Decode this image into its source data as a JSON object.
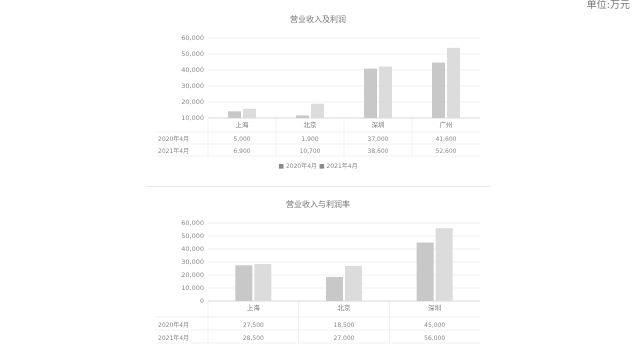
{
  "unit_label": "单位:万元",
  "chart_data": [
    {
      "type": "bar",
      "title": "营业收入及利润",
      "categories": [
        "上海",
        "北京",
        "深圳",
        "广州"
      ],
      "series": [
        {
          "name": "2020年4月",
          "values": [
            5000,
            1900,
            37000,
            41600
          ],
          "color": "#c8c8c8"
        },
        {
          "name": "2021年4月",
          "values": [
            6900,
            10700,
            38600,
            52600
          ],
          "color": "#dcdcdc"
        }
      ],
      "table_rows": [
        {
          "label": "2020年4月",
          "cells": [
            "5,000",
            "1,900",
            "37,000",
            "41,600"
          ]
        },
        {
          "label": "2021年4月",
          "cells": [
            "6,900",
            "10,700",
            "38,600",
            "52,600"
          ]
        }
      ],
      "yticks": [
        "60,000",
        "50,000",
        "40,000",
        "30,000",
        "20,000",
        "10,000"
      ],
      "ylim": [
        0,
        60000
      ],
      "legend_note": "■ 2020年4月   ■ 2021年4月"
    },
    {
      "type": "bar",
      "title": "营业收入与利润率",
      "categories": [
        "上海",
        "北京",
        "深圳"
      ],
      "series": [
        {
          "name": "2020年4月",
          "values": [
            27500,
            18500,
            45000
          ],
          "color": "#c8c8c8"
        },
        {
          "name": "2021年4月",
          "values": [
            28500,
            27000,
            56000
          ],
          "color": "#dcdcdc"
        }
      ],
      "table_rows": [
        {
          "label": "2020年4月",
          "cells": [
            "27,500",
            "18,500",
            "45,000"
          ]
        },
        {
          "label": "2021年4月",
          "cells": [
            "28,500",
            "27,000",
            "56,000"
          ]
        }
      ],
      "yticks": [
        "60,000",
        "50,000",
        "40,000",
        "30,000",
        "20,000",
        "10,000",
        "0"
      ],
      "ylim": [
        0,
        60000
      ]
    }
  ]
}
